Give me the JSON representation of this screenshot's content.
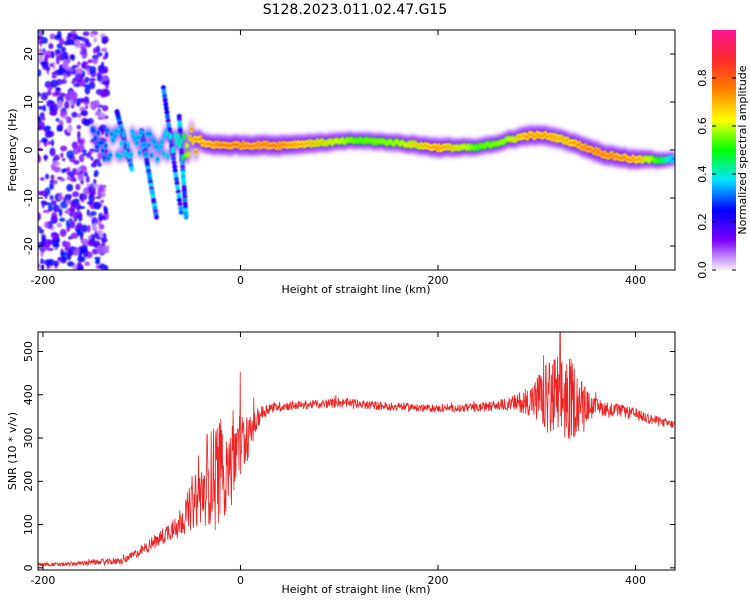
{
  "title": "S128.2023.011.02.47.G15",
  "colors": {
    "snr_line": "#ee2222",
    "spec_low": "#7a00ff",
    "spec_mid": "#00e5ff",
    "spec_high": "#ff2a2a",
    "frame": "#000000",
    "background": "#ffffff"
  },
  "chart_data": [
    {
      "type": "heatmap",
      "name": "spectrogram",
      "xlabel": "Height of straight line (km)",
      "ylabel": "Frequency (Hz)",
      "xlim": [
        -205,
        440
      ],
      "ylim": [
        -25,
        25
      ],
      "xticks": [
        -200,
        0,
        200,
        400
      ],
      "xtick_labels": [
        "-200",
        "0",
        "200",
        "400"
      ],
      "yticks": [
        -20,
        -10,
        0,
        10,
        20
      ],
      "ytick_labels": [
        "-20",
        "-10",
        "0",
        "10",
        "20"
      ],
      "colorbar": {
        "label": "Normalized spectral amplitude",
        "range": [
          0,
          1
        ],
        "ticks": [
          0.0,
          0.2,
          0.4,
          0.6,
          0.8
        ],
        "tick_labels": [
          "0.0",
          "0.2",
          "0.4",
          "0.6",
          "0.8"
        ],
        "stops": [
          "#f8f0ff",
          "#7a00ff",
          "#0000ff",
          "#00e5ff",
          "#00ff00",
          "#ffff00",
          "#ff8000",
          "#ff2a2a",
          "#ff1493"
        ]
      },
      "doppler_track": {
        "x": [
          -150,
          -120,
          -90,
          -60,
          -50,
          -20,
          0,
          40,
          80,
          120,
          160,
          200,
          240,
          270,
          290,
          310,
          330,
          350,
          370,
          400,
          440
        ],
        "freq": [
          1.5,
          1.0,
          0.5,
          1.0,
          1.5,
          1.0,
          1.0,
          1.0,
          1.5,
          2.0,
          1.5,
          0.5,
          0.5,
          2.0,
          3.0,
          3.0,
          2.0,
          0.5,
          -1.0,
          -2.0,
          -2.0
        ],
        "amplitude": [
          0.2,
          0.35,
          0.3,
          0.4,
          0.75,
          0.85,
          0.85,
          0.85,
          0.7,
          0.55,
          0.6,
          0.8,
          0.55,
          0.6,
          0.8,
          0.8,
          0.75,
          0.85,
          0.85,
          0.8,
          0.3
        ]
      }
    },
    {
      "type": "line",
      "name": "snr",
      "xlabel": "Height of straight line (km)",
      "ylabel": "SNR (10 * v/v)",
      "xlim": [
        -205,
        440
      ],
      "ylim": [
        -5,
        545
      ],
      "xticks": [
        -200,
        0,
        200,
        400
      ],
      "xtick_labels": [
        "-200",
        "0",
        "200",
        "400"
      ],
      "yticks": [
        0,
        100,
        200,
        300,
        400,
        500
      ],
      "ytick_labels": [
        "0",
        "100",
        "200",
        "300",
        "400",
        "500"
      ],
      "series": [
        {
          "name": "SNR",
          "x": [
            -205,
            -180,
            -150,
            -120,
            -100,
            -80,
            -70,
            -60,
            -50,
            -40,
            -30,
            -20,
            -10,
            0,
            10,
            20,
            30,
            50,
            80,
            100,
            130,
            160,
            200,
            240,
            270,
            290,
            300,
            310,
            320,
            330,
            340,
            350,
            360,
            380,
            400,
            420,
            440
          ],
          "y": [
            8,
            8,
            12,
            15,
            40,
            70,
            90,
            110,
            140,
            170,
            210,
            230,
            255,
            280,
            310,
            355,
            370,
            375,
            378,
            382,
            376,
            372,
            368,
            370,
            378,
            385,
            390,
            390,
            390,
            392,
            385,
            375,
            370,
            365,
            355,
            340,
            330
          ],
          "spread": [
            4,
            4,
            6,
            8,
            12,
            20,
            25,
            35,
            55,
            75,
            110,
            130,
            120,
            90,
            40,
            20,
            12,
            10,
            10,
            12,
            10,
            10,
            8,
            10,
            14,
            30,
            55,
            85,
            110,
            110,
            80,
            40,
            20,
            15,
            14,
            12,
            10
          ]
        }
      ]
    }
  ]
}
